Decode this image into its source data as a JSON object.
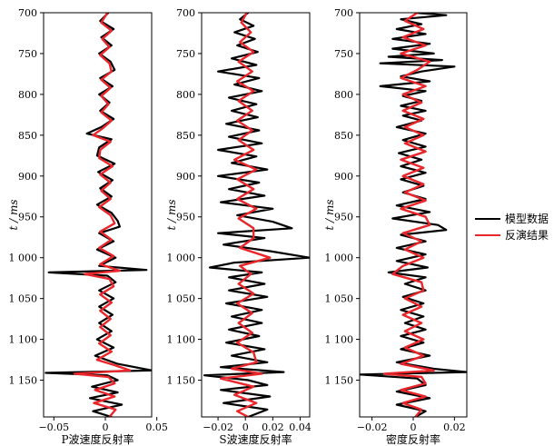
{
  "chart_data": {
    "type": "line",
    "y_axis": {
      "label": "t / ms",
      "range": [
        700,
        1195
      ],
      "inverted": true,
      "ticks": [
        700,
        750,
        800,
        850,
        900,
        950,
        1000,
        1050,
        1100,
        1150
      ],
      "tick_labels": [
        "700",
        "750",
        "800",
        "850",
        "900",
        "950",
        "1 000",
        "1 050",
        "1 100",
        "1 150"
      ]
    },
    "legend": {
      "placement": "right",
      "entries": [
        {
          "label": "模型数据",
          "color": "#000000"
        },
        {
          "label": "反演结果",
          "color": "#e8262b"
        }
      ]
    },
    "panels": [
      {
        "xlabel": "P波速度反射率",
        "xlim": [
          -0.06,
          0.045
        ],
        "xticks": [
          -0.05,
          0,
          0.05
        ],
        "xtick_labels": [
          "−0.05",
          "0",
          "0.05"
        ],
        "series": [
          {
            "name": "模型数据",
            "color": "#000000",
            "t": [
              700,
              710,
              720,
              730,
              740,
              750,
              760,
              770,
              780,
              790,
              800,
              810,
              820,
              830,
              840,
              848,
              855,
              865,
              875,
              885,
              895,
              905,
              915,
              925,
              935,
              945,
              955,
              962,
              970,
              980,
              990,
              1000,
              1010,
              1015,
              1018,
              1022,
              1030,
              1040,
              1050,
              1060,
              1070,
              1080,
              1090,
              1100,
              1110,
              1120,
              1130,
              1138,
              1141,
              1144,
              1150,
              1158,
              1165,
              1172,
              1180,
              1188,
              1195
            ],
            "values": [
              0.003,
              -0.005,
              0.008,
              -0.004,
              0.006,
              -0.006,
              0.005,
              0.009,
              -0.005,
              0.007,
              -0.006,
              0.004,
              -0.005,
              0.008,
              -0.004,
              -0.018,
              0.006,
              -0.006,
              -0.008,
              0.009,
              -0.007,
              0.007,
              -0.005,
              0.006,
              -0.008,
              0.006,
              0.012,
              0.014,
              -0.006,
              0.008,
              -0.008,
              0.01,
              -0.006,
              0.04,
              -0.055,
              0.002,
              0.01,
              -0.006,
              0.008,
              -0.006,
              0.007,
              -0.006,
              0.006,
              -0.008,
              0.008,
              -0.01,
              0.012,
              0.045,
              -0.058,
              0.002,
              0.012,
              -0.013,
              0.012,
              -0.015,
              0.016,
              -0.012,
              0.006
            ]
          },
          {
            "name": "反演结果",
            "color": "#e8262b",
            "t": [
              700,
              712,
              722,
              732,
              742,
              752,
              762,
              772,
              782,
              792,
              802,
              812,
              822,
              832,
              842,
              850,
              858,
              868,
              878,
              888,
              898,
              908,
              918,
              928,
              938,
              948,
              958,
              968,
              978,
              988,
              998,
              1008,
              1016,
              1020,
              1026,
              1035,
              1045,
              1055,
              1065,
              1075,
              1085,
              1095,
              1105,
              1115,
              1125,
              1132,
              1138,
              1142,
              1146,
              1154,
              1162,
              1170,
              1178,
              1186,
              1195
            ],
            "values": [
              0.002,
              -0.004,
              0.006,
              -0.003,
              0.004,
              -0.005,
              0.004,
              0.006,
              -0.004,
              0.005,
              -0.004,
              0.003,
              -0.004,
              0.006,
              -0.003,
              -0.012,
              0.005,
              -0.005,
              -0.006,
              0.007,
              -0.005,
              0.005,
              -0.004,
              0.005,
              -0.006,
              0.005,
              0.009,
              -0.005,
              0.006,
              -0.006,
              0.008,
              -0.005,
              0.014,
              -0.02,
              0.004,
              0.008,
              -0.005,
              0.006,
              -0.005,
              0.005,
              -0.005,
              0.005,
              -0.006,
              0.006,
              -0.008,
              0.01,
              0.024,
              -0.03,
              0.003,
              0.009,
              -0.01,
              0.009,
              -0.011,
              0.01,
              0.004
            ]
          }
        ]
      },
      {
        "xlabel": "S波速度反射率",
        "xlim": [
          -0.032,
          0.047
        ],
        "xticks": [
          -0.02,
          0,
          0.02,
          0.04
        ],
        "xtick_labels": [
          "−0.02",
          "0",
          "0.02",
          "0.04"
        ],
        "series": [
          {
            "name": "模型数据",
            "color": "#000000",
            "t": [
              700,
              708,
              716,
              724,
              732,
              740,
              748,
              756,
              764,
              772,
              780,
              788,
              796,
              804,
              812,
              820,
              828,
              836,
              844,
              852,
              860,
              868,
              876,
              884,
              892,
              900,
              908,
              916,
              924,
              932,
              940,
              948,
              956,
              964,
              970,
              976,
              984,
              992,
              1000,
              1006,
              1012,
              1018,
              1024,
              1032,
              1040,
              1048,
              1056,
              1064,
              1072,
              1080,
              1088,
              1096,
              1104,
              1112,
              1120,
              1128,
              1134,
              1140,
              1144,
              1150,
              1156,
              1162,
              1170,
              1178,
              1186,
              1195
            ],
            "values": [
              0.002,
              -0.004,
              0.006,
              -0.008,
              0.007,
              -0.006,
              0.009,
              -0.01,
              0.008,
              -0.02,
              0.01,
              -0.008,
              0.012,
              -0.012,
              0.008,
              -0.01,
              0.009,
              -0.014,
              0.01,
              -0.012,
              0.012,
              -0.02,
              0.008,
              -0.01,
              0.016,
              -0.02,
              0.01,
              -0.012,
              0.014,
              -0.018,
              0.02,
              -0.006,
              0.02,
              0.034,
              -0.02,
              0.014,
              -0.016,
              0.018,
              0.047,
              -0.008,
              -0.026,
              0.012,
              -0.012,
              0.014,
              -0.012,
              0.016,
              -0.014,
              0.012,
              -0.01,
              0.012,
              -0.012,
              0.01,
              -0.014,
              0.014,
              -0.01,
              0.016,
              -0.018,
              0.028,
              -0.03,
              0.002,
              0.016,
              -0.018,
              0.018,
              -0.016,
              0.016,
              0.002
            ]
          },
          {
            "name": "反演结果",
            "color": "#e8262b",
            "t": [
              700,
              712,
              724,
              736,
              748,
              760,
              772,
              784,
              796,
              808,
              820,
              832,
              844,
              856,
              868,
              880,
              892,
              904,
              916,
              928,
              940,
              952,
              964,
              976,
              988,
              1000,
              1010,
              1020,
              1032,
              1044,
              1056,
              1068,
              1080,
              1092,
              1104,
              1116,
              1128,
              1136,
              1142,
              1148,
              1158,
              1168,
              1178,
              1188,
              1195
            ],
            "values": [
              0.001,
              -0.003,
              0.004,
              -0.004,
              0.006,
              -0.005,
              0.005,
              -0.006,
              0.006,
              -0.005,
              0.005,
              -0.006,
              0.005,
              -0.005,
              0.006,
              -0.008,
              0.008,
              -0.006,
              0.006,
              -0.006,
              0.008,
              -0.005,
              0.006,
              0.006,
              -0.004,
              0.018,
              -0.004,
              0.004,
              -0.005,
              0.006,
              -0.006,
              0.005,
              -0.005,
              0.005,
              -0.006,
              0.006,
              0.008,
              -0.01,
              0.012,
              -0.018,
              0.006,
              -0.008,
              0.008,
              -0.006,
              0.002
            ]
          }
        ]
      },
      {
        "xlabel": "密度反射率",
        "xlim": [
          -0.026,
          0.026
        ],
        "xticks": [
          -0.02,
          0,
          0.02
        ],
        "xtick_labels": [
          "−0.02",
          "0",
          "0.02"
        ],
        "series": [
          {
            "name": "模型数据",
            "color": "#000000",
            "t": [
              700,
              703,
              708,
              714,
              720,
              726,
              732,
              738,
              744,
              750,
              754,
              758,
              762,
              766,
              772,
              778,
              784,
              790,
              796,
              802,
              808,
              814,
              820,
              826,
              832,
              840,
              848,
              856,
              864,
              872,
              880,
              888,
              896,
              904,
              912,
              920,
              928,
              936,
              944,
              952,
              960,
              966,
              972,
              980,
              988,
              996,
              1004,
              1012,
              1018,
              1024,
              1032,
              1040,
              1048,
              1056,
              1064,
              1072,
              1080,
              1088,
              1096,
              1104,
              1112,
              1120,
              1128,
              1136,
              1140,
              1143,
              1148,
              1156,
              1164,
              1172,
              1180,
              1188,
              1195
            ],
            "values": [
              0.001,
              0.016,
              -0.006,
              0.004,
              -0.008,
              0.006,
              -0.01,
              0.008,
              -0.01,
              0.01,
              -0.012,
              0.014,
              -0.016,
              0.02,
              0.004,
              -0.006,
              0.008,
              -0.016,
              0.006,
              -0.005,
              0.004,
              -0.006,
              0.006,
              -0.005,
              0.004,
              -0.008,
              0.006,
              -0.005,
              0.006,
              -0.007,
              0.004,
              -0.006,
              0.006,
              -0.006,
              0.005,
              -0.005,
              0.006,
              -0.008,
              0.008,
              -0.01,
              0.012,
              0.016,
              -0.006,
              0.006,
              -0.008,
              0.006,
              -0.008,
              0.007,
              -0.012,
              0.006,
              -0.004,
              0.006,
              -0.005,
              0.005,
              -0.006,
              0.005,
              -0.004,
              0.006,
              -0.006,
              0.005,
              -0.006,
              0.008,
              -0.008,
              0.01,
              0.026,
              -0.026,
              0.002,
              0.006,
              -0.008,
              0.008,
              -0.008,
              0.006,
              0.001
            ]
          },
          {
            "name": "反演结果",
            "color": "#e8262b",
            "t": [
              700,
              710,
              720,
              730,
              740,
              750,
              760,
              770,
              780,
              790,
              800,
              810,
              820,
              830,
              840,
              850,
              860,
              870,
              880,
              890,
              900,
              910,
              920,
              930,
              940,
              950,
              960,
              970,
              980,
              990,
              1000,
              1010,
              1020,
              1030,
              1040,
              1050,
              1060,
              1070,
              1080,
              1090,
              1100,
              1110,
              1120,
              1130,
              1138,
              1142,
              1146,
              1154,
              1162,
              1170,
              1178,
              1186,
              1195
            ],
            "values": [
              0.002,
              -0.004,
              0.005,
              -0.005,
              0.006,
              -0.006,
              0.008,
              0.002,
              -0.006,
              0.006,
              -0.005,
              0.004,
              -0.005,
              0.005,
              -0.004,
              0.005,
              -0.004,
              0.006,
              -0.006,
              0.005,
              -0.005,
              0.005,
              -0.004,
              0.006,
              -0.006,
              0.006,
              0.008,
              -0.005,
              0.004,
              -0.004,
              0.005,
              -0.005,
              -0.01,
              0.004,
              0.005,
              -0.004,
              0.004,
              -0.005,
              0.004,
              -0.004,
              0.005,
              -0.004,
              0.005,
              -0.006,
              0.01,
              -0.014,
              0.004,
              0.006,
              -0.006,
              0.006,
              -0.005,
              0.004,
              0.001
            ]
          }
        ]
      }
    ]
  }
}
